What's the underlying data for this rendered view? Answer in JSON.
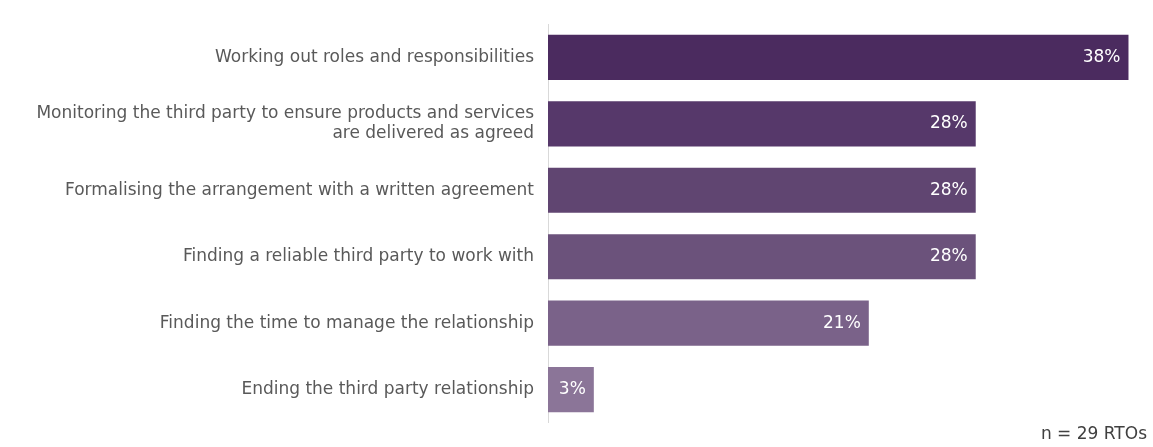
{
  "chart_data": {
    "type": "bar",
    "orientation": "horizontal",
    "categories": [
      "Working out roles and responsibilities",
      "Monitoring the third party to ensure products and services are delivered as agreed",
      "Formalising the arrangement with a written agreement",
      "Finding a reliable third party to work with",
      "Finding the time to manage the relationship",
      "Ending the third party relationship"
    ],
    "values": [
      38,
      28,
      28,
      28,
      21,
      3
    ],
    "colors": [
      "#4b2b5f",
      "#56386a",
      "#604571",
      "#6b527b",
      "#7a6289",
      "#8b7598"
    ],
    "value_labels": [
      "38%",
      "28%",
      "28%",
      "28%",
      "21%",
      "3%"
    ],
    "annotations": [
      "n = 29 RTOs"
    ],
    "grid": false,
    "legend": false
  }
}
